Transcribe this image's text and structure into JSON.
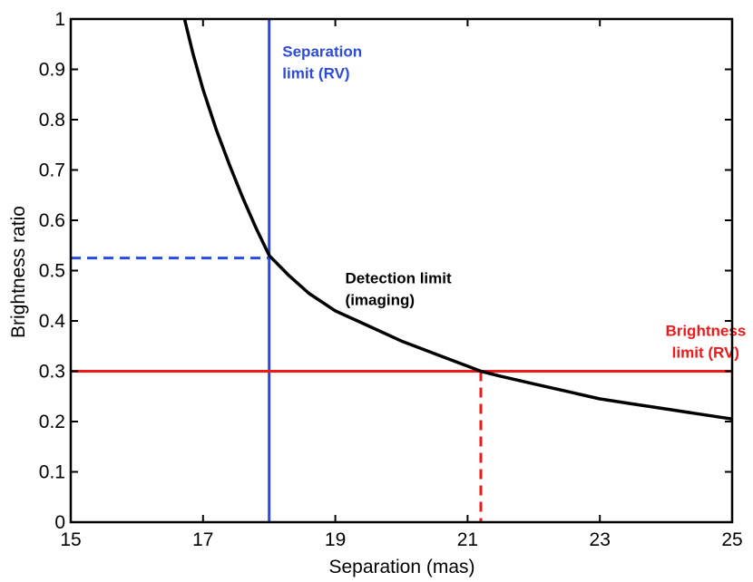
{
  "chart_data": {
    "type": "line",
    "title": "",
    "xlabel": "Separation (mas)",
    "ylabel": "Brightness ratio",
    "xlim": [
      15,
      25
    ],
    "ylim": [
      0,
      1
    ],
    "xticks": [
      15,
      17,
      19,
      21,
      23,
      25
    ],
    "yticks": [
      0,
      0.1,
      0.2,
      0.3,
      0.4,
      0.5,
      0.6,
      0.7,
      0.8,
      0.9,
      1
    ],
    "grid": false,
    "colors": {
      "curve": "#000000",
      "separation": "#2b4be0",
      "brightness": "#f01818"
    },
    "series": [
      {
        "x": [
          16.72,
          16.85,
          17.0,
          17.2,
          17.4,
          17.6,
          17.8,
          18.0,
          18.3,
          18.6,
          19.0,
          19.5,
          20.0,
          20.5,
          21.0,
          21.2,
          21.5,
          22.0,
          22.5,
          23.0,
          23.5,
          24.0,
          24.5,
          25.0
        ],
        "y": [
          1.0,
          0.93,
          0.86,
          0.78,
          0.71,
          0.645,
          0.585,
          0.53,
          0.49,
          0.455,
          0.42,
          0.39,
          0.36,
          0.335,
          0.31,
          0.3,
          0.29,
          0.275,
          0.26,
          0.245,
          0.235,
          0.225,
          0.215,
          0.205
        ]
      }
    ],
    "reference_lines": {
      "separation_limit_x": 18.0,
      "brightness_limit_y": 0.3,
      "separation_intercept_y": 0.525,
      "brightness_intercept_x": 21.2
    },
    "annotations": [
      {
        "lines": [
          "Separation",
          "limit (RV)"
        ],
        "x": 18.2,
        "y": 0.925,
        "color": "separation"
      },
      {
        "lines": [
          "Detection limit",
          "(imaging)"
        ],
        "x": 19.15,
        "y": 0.475,
        "color": "curve"
      },
      {
        "lines": [
          "Brightness",
          "limit (RV)"
        ],
        "x": 24.6,
        "y": 0.37,
        "color": "brightness",
        "align": "right"
      }
    ]
  }
}
